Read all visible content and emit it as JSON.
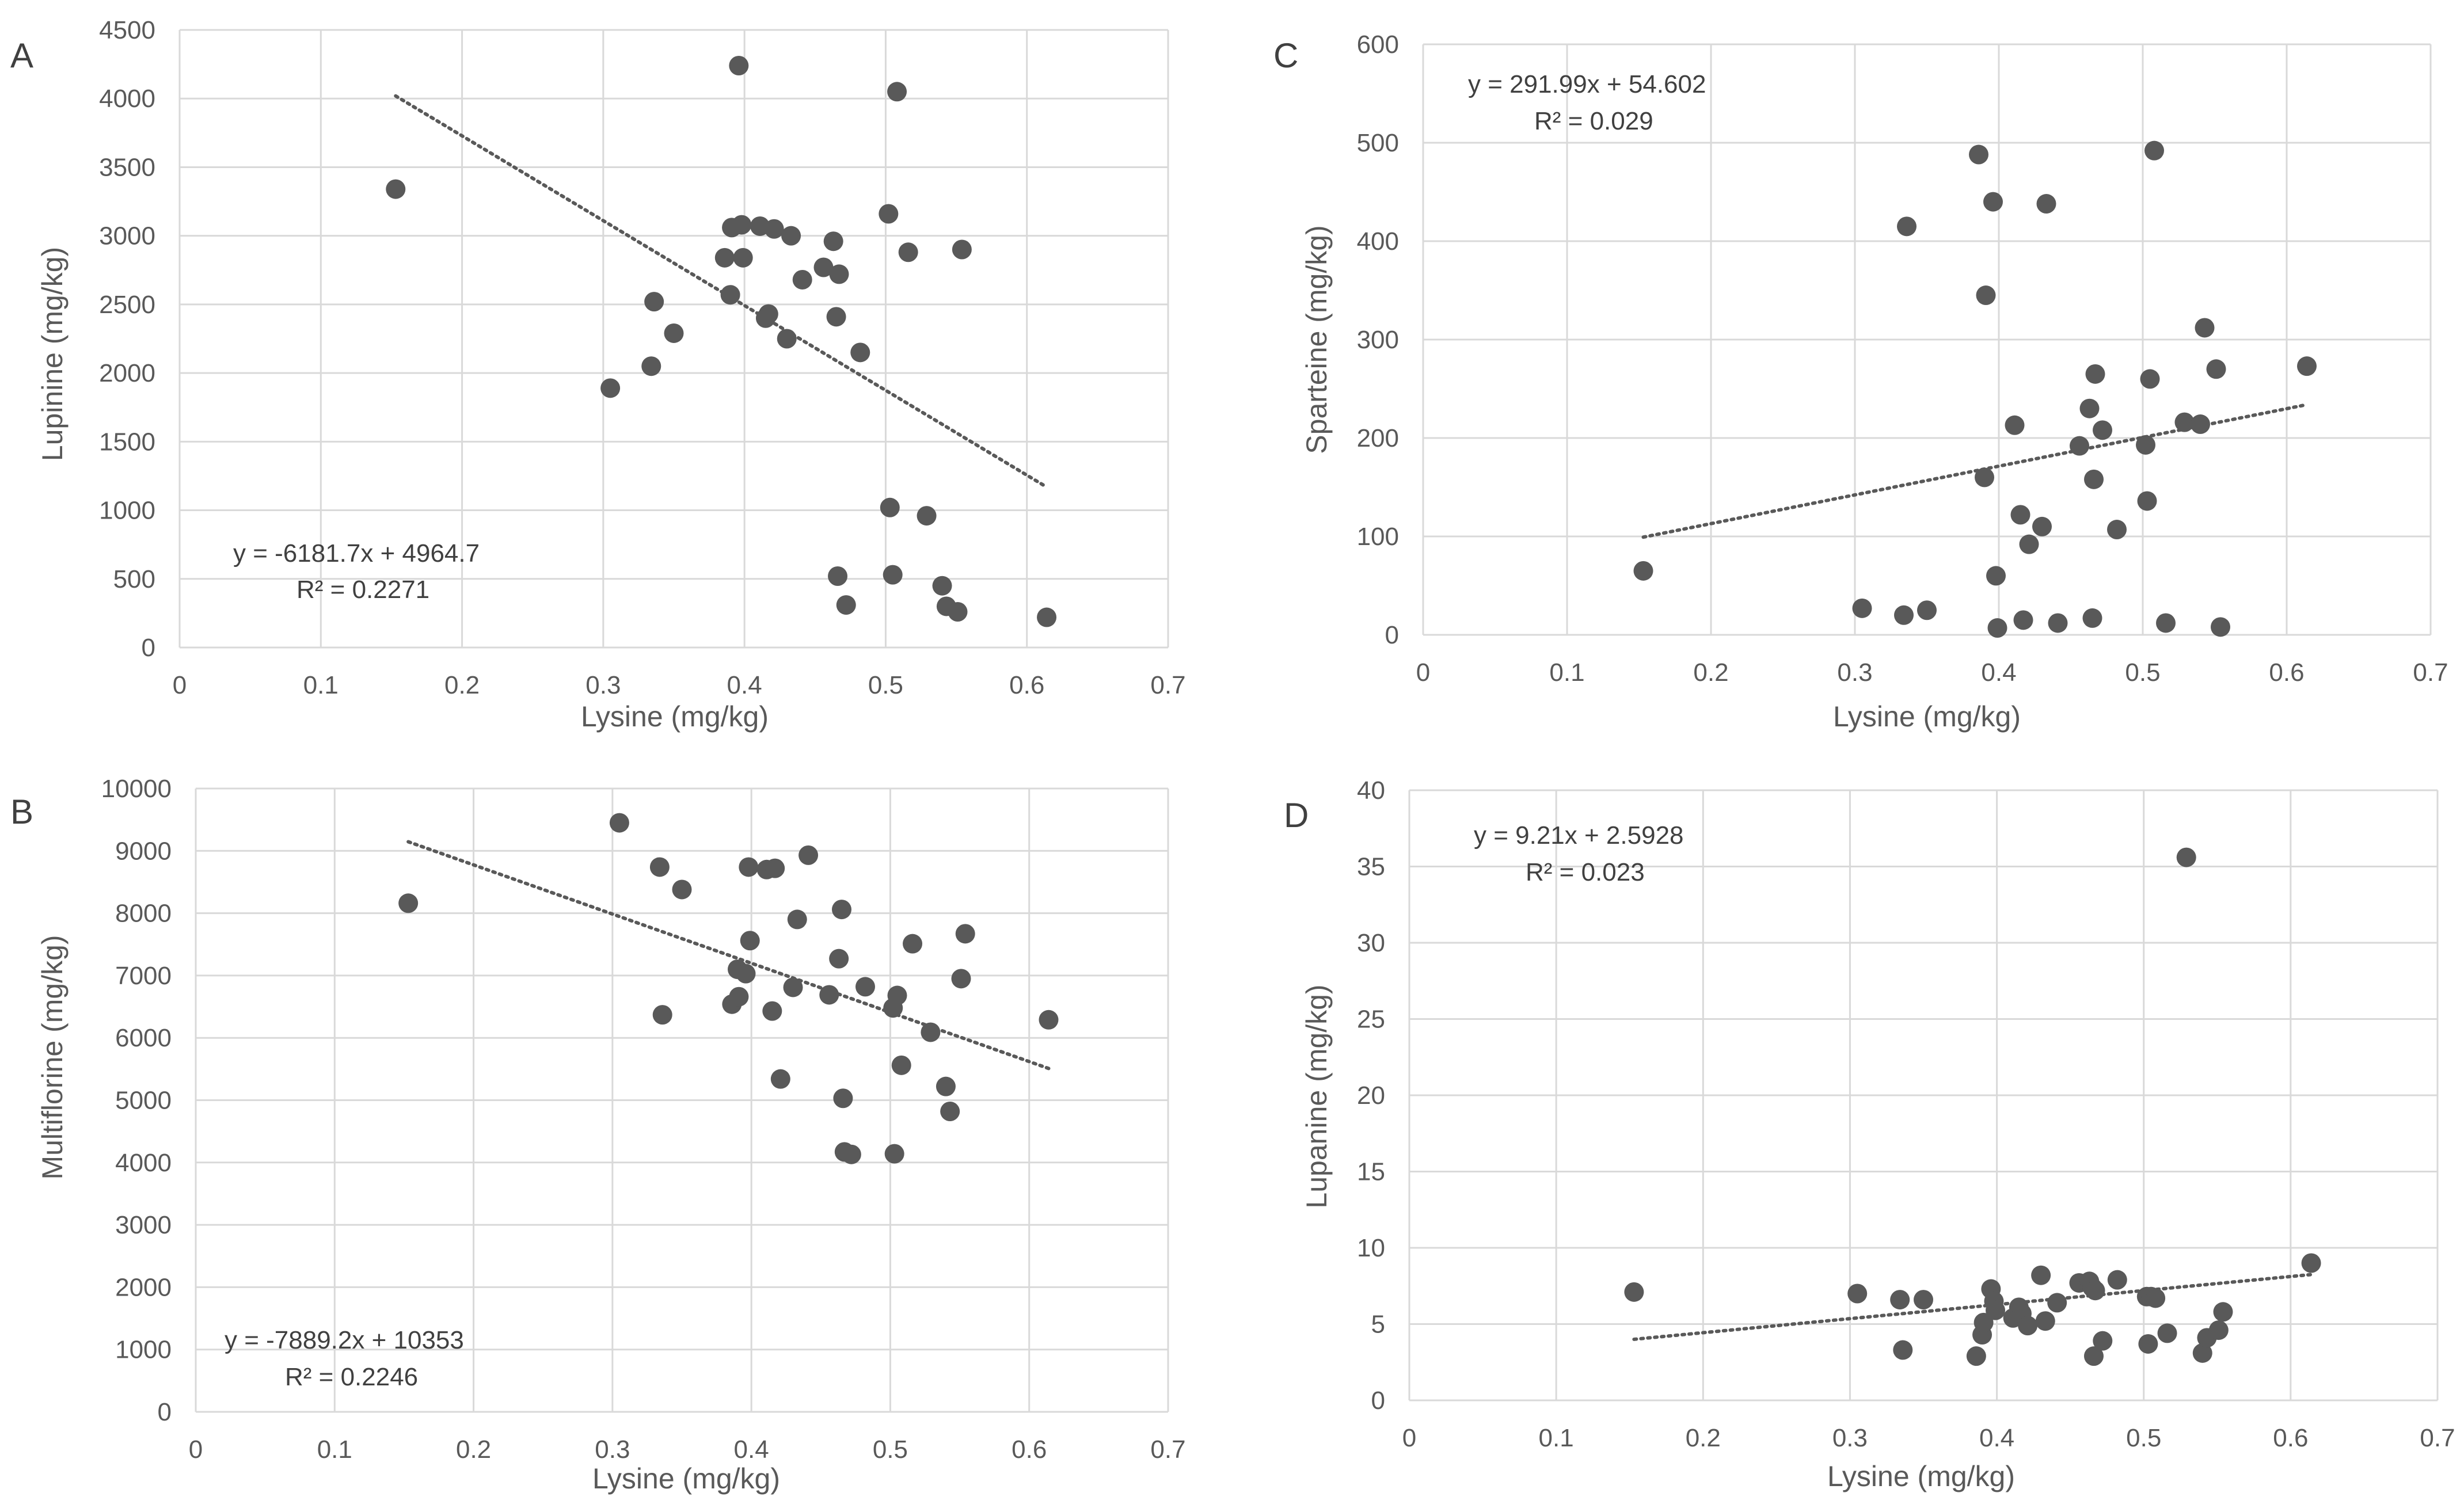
{
  "chart_data": [
    {
      "panel": "A",
      "type": "scatter",
      "xlabel": "Lysine (mg/kg)",
      "ylabel": "Lupinine (mg/kg)",
      "xlim": [
        0,
        0.7
      ],
      "ylim": [
        0,
        4500
      ],
      "xticks": [
        "0",
        "0.1",
        "0.2",
        "0.3",
        "0.4",
        "0.5",
        "0.6",
        "0.7"
      ],
      "yticks": [
        "0",
        "500",
        "1000",
        "1500",
        "2000",
        "2500",
        "3000",
        "3500",
        "4000",
        "4500"
      ],
      "trendline": {
        "slope": -6181.7,
        "intercept": 4964.7,
        "x_range": [
          0.153,
          0.614
        ]
      },
      "equation": "y = -6181.7x + 4964.7",
      "r2": "R² = 0.2271",
      "x": [
        0.153,
        0.305,
        0.334,
        0.336,
        0.35,
        0.386,
        0.39,
        0.391,
        0.396,
        0.398,
        0.399,
        0.411,
        0.415,
        0.417,
        0.421,
        0.43,
        0.433,
        0.441,
        0.456,
        0.463,
        0.465,
        0.466,
        0.467,
        0.472,
        0.482,
        0.502,
        0.503,
        0.505,
        0.508,
        0.516,
        0.529,
        0.54,
        0.543,
        0.551,
        0.554,
        0.614
      ],
      "y": [
        3340,
        1890,
        2050,
        2520,
        2290,
        2840,
        2570,
        3060,
        4240,
        3080,
        2840,
        3070,
        2400,
        2430,
        3050,
        2250,
        3000,
        2680,
        2770,
        2960,
        2410,
        520,
        2720,
        310,
        2150,
        3160,
        1020,
        530,
        4050,
        2880,
        960,
        450,
        300,
        260,
        2900,
        220
      ]
    },
    {
      "panel": "B",
      "type": "scatter",
      "xlabel": "Lysine (mg/kg)",
      "ylabel": "Multiflorine (mg/kg)",
      "xlim": [
        0,
        0.7
      ],
      "ylim": [
        0,
        10000
      ],
      "xticks": [
        "0",
        "0.1",
        "0.2",
        "0.3",
        "0.4",
        "0.5",
        "0.6",
        "0.7"
      ],
      "yticks": [
        "0",
        "1000",
        "2000",
        "3000",
        "4000",
        "5000",
        "6000",
        "7000",
        "8000",
        "9000",
        "10000"
      ],
      "trendline": {
        "slope": -7889.2,
        "intercept": 10353,
        "x_range": [
          0.153,
          0.614
        ]
      },
      "equation": "y = -7889.2x + 10353",
      "r2": "R² = 0.2246",
      "x": [
        0.153,
        0.305,
        0.334,
        0.336,
        0.35,
        0.386,
        0.39,
        0.391,
        0.396,
        0.398,
        0.399,
        0.411,
        0.415,
        0.417,
        0.421,
        0.43,
        0.433,
        0.441,
        0.456,
        0.463,
        0.465,
        0.466,
        0.467,
        0.472,
        0.482,
        0.502,
        0.503,
        0.505,
        0.508,
        0.516,
        0.529,
        0.54,
        0.543,
        0.551,
        0.554,
        0.614
      ],
      "y": [
        8160,
        9450,
        8740,
        6370,
        8380,
        6540,
        7100,
        6660,
        7030,
        8740,
        7560,
        8700,
        6430,
        8720,
        5340,
        6810,
        7900,
        8930,
        6690,
        7270,
        8060,
        5030,
        4170,
        4130,
        6820,
        6480,
        4140,
        6680,
        5560,
        7510,
        6090,
        5220,
        4820,
        6950,
        7670,
        6290
      ]
    },
    {
      "panel": "C",
      "type": "scatter",
      "xlabel": "Lysine (mg/kg)",
      "ylabel": "Sparteine (mg/kg)",
      "xlim": [
        0,
        0.7
      ],
      "ylim": [
        0,
        600
      ],
      "xticks": [
        "0",
        "0.1",
        "0.2",
        "0.3",
        "0.4",
        "0.5",
        "0.6",
        "0.7"
      ],
      "yticks": [
        "0",
        "100",
        "200",
        "300",
        "400",
        "500",
        "600"
      ],
      "trendline": {
        "slope": 291.99,
        "intercept": 54.602,
        "x_range": [
          0.153,
          0.614
        ]
      },
      "equation": "y = 291.99x + 54.602",
      "r2": "R² = 0.029",
      "x": [
        0.153,
        0.305,
        0.334,
        0.336,
        0.35,
        0.386,
        0.39,
        0.391,
        0.396,
        0.398,
        0.399,
        0.411,
        0.415,
        0.417,
        0.421,
        0.43,
        0.433,
        0.441,
        0.456,
        0.463,
        0.465,
        0.466,
        0.467,
        0.472,
        0.482,
        0.502,
        0.503,
        0.505,
        0.508,
        0.516,
        0.529,
        0.54,
        0.543,
        0.551,
        0.554,
        0.614
      ],
      "y": [
        65,
        27,
        20,
        415,
        25,
        488,
        160,
        345,
        440,
        60,
        7,
        213,
        122,
        15,
        92,
        110,
        438,
        12,
        192,
        230,
        17,
        158,
        265,
        208,
        107,
        193,
        136,
        260,
        492,
        12,
        216,
        214,
        312,
        270,
        8,
        273
      ]
    },
    {
      "panel": "D",
      "type": "scatter",
      "xlabel": "Lysine (mg/kg)",
      "ylabel": "Lupanine (mg/kg)",
      "xlim": [
        0,
        0.7
      ],
      "ylim": [
        0,
        40
      ],
      "xticks": [
        "0",
        "0.1",
        "0.2",
        "0.3",
        "0.4",
        "0.5",
        "0.6",
        "0.7"
      ],
      "yticks": [
        "0",
        "5",
        "10",
        "15",
        "20",
        "25",
        "30",
        "35",
        "40"
      ],
      "trendline": {
        "slope": 9.21,
        "intercept": 2.5928,
        "x_range": [
          0.153,
          0.614
        ]
      },
      "equation": "y = 9.21x + 2.5928",
      "r2": "R² = 0.023",
      "x": [
        0.153,
        0.305,
        0.334,
        0.336,
        0.35,
        0.386,
        0.39,
        0.391,
        0.396,
        0.398,
        0.399,
        0.411,
        0.415,
        0.417,
        0.421,
        0.43,
        0.433,
        0.441,
        0.456,
        0.463,
        0.465,
        0.466,
        0.467,
        0.472,
        0.482,
        0.502,
        0.503,
        0.505,
        0.508,
        0.516,
        0.529,
        0.54,
        0.543,
        0.551,
        0.554,
        0.614
      ],
      "y": [
        7.1,
        7.0,
        6.6,
        3.3,
        6.6,
        2.9,
        4.3,
        5.1,
        7.3,
        6.5,
        5.9,
        5.4,
        6.1,
        5.7,
        4.9,
        8.2,
        5.2,
        6.4,
        7.7,
        7.8,
        7.4,
        2.9,
        7.2,
        3.9,
        7.9,
        6.8,
        3.7,
        6.8,
        6.7,
        4.4,
        35.6,
        3.1,
        4.1,
        4.6,
        5.8,
        9.0
      ]
    }
  ]
}
